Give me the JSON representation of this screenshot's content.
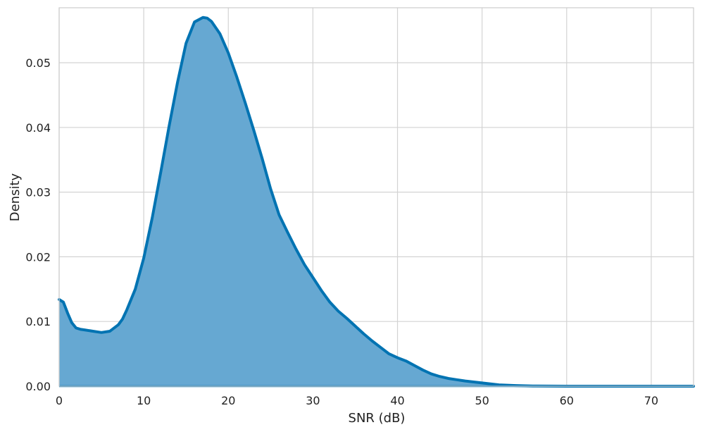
{
  "chart_data": {
    "type": "area",
    "title": "",
    "xlabel": "SNR (dB)",
    "ylabel": "Density",
    "xlim": [
      0,
      75
    ],
    "ylim": [
      0,
      0.0585
    ],
    "x_ticks": [
      0,
      10,
      20,
      30,
      40,
      50,
      60,
      70
    ],
    "y_ticks": [
      0.0,
      0.01,
      0.02,
      0.03,
      0.04,
      0.05
    ],
    "x_tick_labels": [
      "0",
      "10",
      "20",
      "30",
      "40",
      "50",
      "60",
      "70"
    ],
    "y_tick_labels": [
      "0.00",
      "0.01",
      "0.02",
      "0.03",
      "0.04",
      "0.05"
    ],
    "grid": true,
    "legend": "none",
    "colors": {
      "line": "#0173b2",
      "fill": "#66a8d2",
      "grid": "#d3d3d3",
      "frame": "#cccccc"
    },
    "series": [
      {
        "x": [
          0,
          0.5,
          1,
          1.5,
          2,
          2.5,
          3,
          4,
          5,
          6,
          7,
          7.5,
          8,
          9,
          10,
          11,
          12,
          13,
          14,
          15,
          16,
          17,
          17.5,
          18,
          19,
          20,
          21,
          22,
          23,
          24,
          25,
          26,
          27,
          28,
          29,
          30,
          31,
          32,
          33,
          34,
          35,
          36,
          37,
          38,
          39,
          40,
          41,
          42,
          43,
          44,
          45,
          46,
          47,
          48,
          50,
          52,
          54,
          56,
          60,
          65,
          70,
          75
        ],
        "y": [
          0.0134,
          0.013,
          0.0113,
          0.0098,
          0.009,
          0.0088,
          0.0087,
          0.0085,
          0.0083,
          0.0085,
          0.0095,
          0.0104,
          0.0118,
          0.015,
          0.0198,
          0.026,
          0.033,
          0.0402,
          0.047,
          0.053,
          0.0563,
          0.057,
          0.0569,
          0.0564,
          0.0545,
          0.0515,
          0.0478,
          0.0438,
          0.0396,
          0.0352,
          0.0305,
          0.0265,
          0.0238,
          0.0212,
          0.0188,
          0.0168,
          0.0148,
          0.013,
          0.0116,
          0.0105,
          0.0093,
          0.0081,
          0.007,
          0.006,
          0.005,
          0.0044,
          0.0039,
          0.0032,
          0.0025,
          0.0019,
          0.0015,
          0.0012,
          0.001,
          0.0008,
          0.0005,
          0.0002,
          0.0001,
          3e-05,
          0.0,
          0.0,
          0.0,
          0.0
        ]
      }
    ]
  }
}
